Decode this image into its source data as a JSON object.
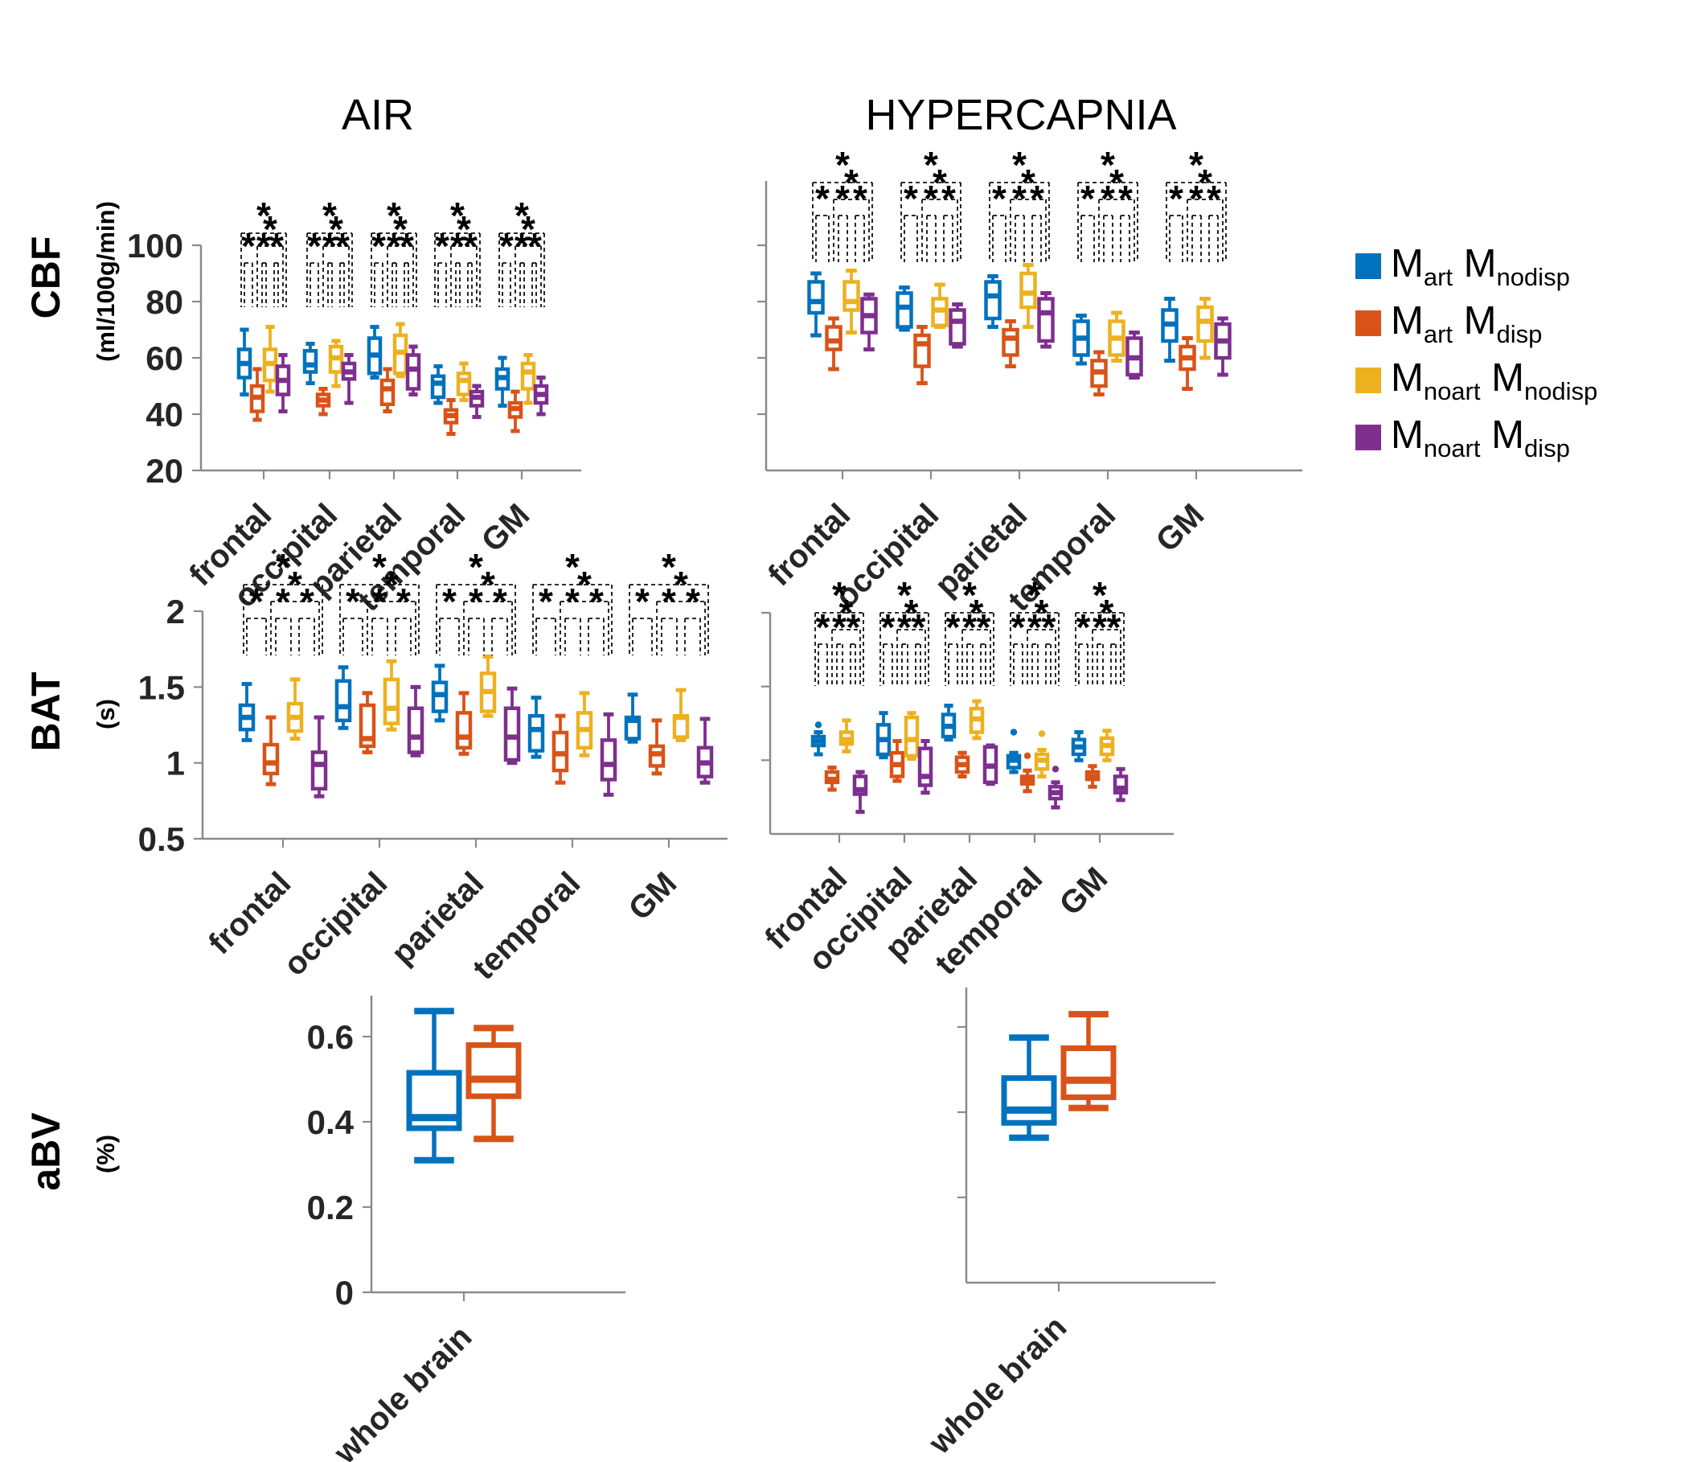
{
  "titles": {
    "air": "AIR",
    "hypercapnia": "HYPERCAPNIA"
  },
  "rows": [
    {
      "label": "CBF",
      "unit": "(ml/100g/min)"
    },
    {
      "label": "BAT",
      "unit": "(s)"
    },
    {
      "label": "aBV",
      "unit": "(%)"
    }
  ],
  "legend": {
    "items": [
      {
        "color": "#0072BD",
        "parts": [
          "M",
          "art",
          " M",
          "nodisp"
        ],
        "name": "Mart Mnodisp"
      },
      {
        "color": "#D95319",
        "parts": [
          "M",
          "art",
          " M",
          "disp"
        ],
        "name": "Mart Mdisp"
      },
      {
        "color": "#EDB120",
        "parts": [
          "M",
          "noart",
          " M",
          "nodisp"
        ],
        "name": "Mnoart Mnodisp"
      },
      {
        "color": "#7E2F8E",
        "parts": [
          "M",
          "noart",
          " M",
          "disp"
        ],
        "name": "Mnoart Mdisp"
      }
    ]
  },
  "chart_data": [
    {
      "id": "cbf-air",
      "type": "box",
      "measure": "CBF",
      "condition": "AIR",
      "ylabel": "(ml/100g/min)",
      "ylim": [
        20,
        100
      ],
      "yticks": [
        {
          "v": 20,
          "t": "20"
        },
        {
          "v": 40,
          "t": "40"
        },
        {
          "v": 60,
          "t": "60"
        },
        {
          "v": 80,
          "t": "80"
        },
        {
          "v": 100,
          "t": "100"
        }
      ],
      "categories": [
        "frontal",
        "occipital",
        "parietal",
        "temporal",
        "GM"
      ],
      "series": [
        {
          "name": "Mart Mnodisp",
          "color": "#0072BD",
          "boxes": [
            [
              47,
              53,
              58,
              63,
              70
            ],
            [
              51,
              55,
              57.5,
              62.5,
              65
            ],
            [
              53,
              54.5,
              61,
              67,
              71
            ],
            [
              44,
              46,
              51,
              53.5,
              57
            ],
            [
              43,
              49,
              53,
              56,
              60
            ]
          ]
        },
        {
          "name": "Mart Mdisp",
          "color": "#D95319",
          "boxes": [
            [
              38,
              41,
              46,
              50,
              56
            ],
            [
              40,
              43,
              45,
              47,
              49
            ],
            [
              41,
              43.5,
              49,
              52,
              56
            ],
            [
              33,
              37,
              39.5,
              41.5,
              45
            ],
            [
              34,
              39,
              42,
              44,
              48
            ]
          ]
        },
        {
          "name": "Mnoart Mnodisp",
          "color": "#EDB120",
          "boxes": [
            [
              48,
              52,
              58,
              63,
              71
            ],
            [
              50,
              55,
              60,
              64,
              66
            ],
            [
              53.5,
              54.5,
              62,
              68,
              72
            ],
            [
              45,
              47,
              52,
              54.5,
              58
            ],
            [
              44,
              49,
              55,
              58,
              61
            ]
          ]
        },
        {
          "name": "Mnoart Mdisp",
          "color": "#7E2F8E",
          "boxes": [
            [
              41,
              47,
              52,
              57,
              61
            ],
            [
              44,
              52.5,
              55,
              58,
              61
            ],
            [
              47,
              49,
              56,
              61,
              64
            ],
            [
              39,
              43,
              46,
              48,
              50
            ],
            [
              40,
              44,
              47,
              50,
              53
            ]
          ]
        }
      ],
      "sig": {
        "symbol": "*",
        "comparisons": [
          [
            1,
            4
          ],
          [
            2,
            4
          ],
          [
            1,
            2
          ],
          [
            2,
            3
          ],
          [
            3,
            4
          ]
        ]
      }
    },
    {
      "id": "cbf-hyp",
      "type": "box",
      "measure": "CBF",
      "condition": "HYPERCAPNIA",
      "ylim": [
        20,
        100
      ],
      "yticks": [
        {
          "v": 40,
          "t": ""
        },
        {
          "v": 60,
          "t": ""
        },
        {
          "v": 80,
          "t": ""
        },
        {
          "v": 100,
          "t": ""
        }
      ],
      "categories": [
        "frontal",
        "occipital",
        "parietal",
        "temporal",
        "GM"
      ],
      "series": [
        {
          "name": "Mart Mnodisp",
          "color": "#0072BD",
          "boxes": [
            [
              68,
              76,
              80,
              87,
              90
            ],
            [
              70,
              71,
              78,
              83,
              85
            ],
            [
              71,
              74,
              82,
              87,
              89
            ],
            [
              58,
              61,
              67,
              73,
              75
            ],
            [
              59,
              66,
              72,
              77,
              81
            ]
          ]
        },
        {
          "name": "Mart Mdisp",
          "color": "#D95319",
          "boxes": [
            [
              56,
              63,
              66,
              71,
              74
            ],
            [
              51,
              57,
              65,
              68,
              71
            ],
            [
              57,
              61,
              67,
              70,
              73
            ],
            [
              47,
              50,
              55,
              59,
              62
            ],
            [
              49,
              56,
              60,
              64,
              67
            ]
          ]
        },
        {
          "name": "Mnoart Mnodisp",
          "color": "#EDB120",
          "boxes": [
            [
              69,
              77,
              80,
              87,
              91
            ],
            [
              71,
              71.5,
              77,
              81,
              86
            ],
            [
              71,
              78,
              83,
              90,
              93
            ],
            [
              59,
              61,
              67,
              73,
              76
            ],
            [
              60,
              66,
              73,
              78,
              81
            ]
          ]
        },
        {
          "name": "Mnoart Mdisp",
          "color": "#7E2F8E",
          "boxes": [
            [
              63,
              69,
              75,
              81,
              82.5
            ],
            [
              64,
              65,
              73,
              77,
              79
            ],
            [
              64,
              66,
              76,
              81,
              83
            ],
            [
              53,
              54,
              60,
              67,
              69
            ],
            [
              54,
              60,
              66,
              72,
              74
            ]
          ]
        }
      ],
      "sig": {
        "symbol": "*",
        "comparisons": [
          [
            1,
            4
          ],
          [
            2,
            4
          ],
          [
            1,
            2
          ],
          [
            2,
            3
          ],
          [
            3,
            4
          ]
        ]
      }
    },
    {
      "id": "bat-air",
      "type": "box",
      "measure": "BAT",
      "condition": "AIR",
      "ylabel": "(s)",
      "ylim": [
        0.5,
        2
      ],
      "yticks": [
        {
          "v": 0.5,
          "t": "0.5"
        },
        {
          "v": 1,
          "t": "1"
        },
        {
          "v": 1.5,
          "t": "1.5"
        },
        {
          "v": 2,
          "t": "2"
        }
      ],
      "categories": [
        "frontal",
        "occipital",
        "parietal",
        "temporal",
        "GM"
      ],
      "series": [
        {
          "name": "Mart Mnodisp",
          "color": "#0072BD",
          "boxes": [
            [
              1.15,
              1.22,
              1.3,
              1.38,
              1.52
            ],
            [
              1.23,
              1.28,
              1.37,
              1.54,
              1.63
            ],
            [
              1.28,
              1.34,
              1.45,
              1.53,
              1.64
            ],
            [
              1.04,
              1.08,
              1.22,
              1.31,
              1.43
            ],
            [
              1.14,
              1.16,
              1.28,
              1.3,
              1.45
            ]
          ]
        },
        {
          "name": "Mart Mdisp",
          "color": "#D95319",
          "boxes": [
            [
              0.86,
              0.93,
              1.0,
              1.12,
              1.3
            ],
            [
              1.07,
              1.11,
              1.16,
              1.38,
              1.46
            ],
            [
              1.06,
              1.1,
              1.17,
              1.33,
              1.46
            ],
            [
              0.87,
              0.95,
              1.06,
              1.2,
              1.31
            ],
            [
              0.93,
              0.98,
              1.06,
              1.11,
              1.28
            ]
          ]
        },
        {
          "name": "Mnoart Mnodisp",
          "color": "#EDB120",
          "boxes": [
            [
              1.16,
              1.21,
              1.3,
              1.39,
              1.55
            ],
            [
              1.22,
              1.26,
              1.36,
              1.55,
              1.67
            ],
            [
              1.31,
              1.34,
              1.47,
              1.59,
              1.7
            ],
            [
              1.05,
              1.1,
              1.22,
              1.33,
              1.46
            ],
            [
              1.15,
              1.17,
              1.3,
              1.31,
              1.48
            ]
          ]
        },
        {
          "name": "Mnoart Mdisp",
          "color": "#7E2F8E",
          "boxes": [
            [
              0.78,
              0.83,
              0.99,
              1.07,
              1.3
            ],
            [
              1.05,
              1.07,
              1.17,
              1.36,
              1.5
            ],
            [
              1.0,
              1.02,
              1.17,
              1.36,
              1.49
            ],
            [
              0.79,
              0.89,
              0.99,
              1.15,
              1.32
            ],
            [
              0.87,
              0.91,
              1.0,
              1.1,
              1.29
            ]
          ]
        }
      ],
      "sig": {
        "symbol": "*",
        "comparisons": [
          [
            1,
            4
          ],
          [
            2,
            4
          ],
          [
            1,
            2
          ],
          [
            2,
            3
          ],
          [
            3,
            4
          ]
        ]
      }
    },
    {
      "id": "bat-hyp",
      "type": "box",
      "measure": "BAT",
      "condition": "HYPERCAPNIA",
      "ylim": [
        0.5,
        2
      ],
      "yticks": [
        {
          "v": 1,
          "t": ""
        },
        {
          "v": 1.5,
          "t": ""
        },
        {
          "v": 2,
          "t": ""
        }
      ],
      "categories": [
        "frontal",
        "occipital",
        "parietal",
        "temporal",
        "GM"
      ],
      "series": [
        {
          "name": "Mart Mnodisp",
          "color": "#0072BD",
          "boxes": [
            [
              1.04,
              1.1,
              1.13,
              1.16,
              1.19,
              [
                1.24
              ]
            ],
            [
              1.02,
              1.04,
              1.14,
              1.24,
              1.32
            ],
            [
              1.14,
              1.16,
              1.23,
              1.31,
              1.37
            ],
            [
              0.92,
              0.95,
              1.0,
              1.03,
              1.05,
              [
                1.19
              ]
            ],
            [
              1.0,
              1.04,
              1.09,
              1.14,
              1.19
            ]
          ]
        },
        {
          "name": "Mart Mdisp",
          "color": "#D95319",
          "boxes": [
            [
              0.8,
              0.85,
              0.87,
              0.92,
              0.95
            ],
            [
              0.86,
              0.89,
              0.97,
              1.05,
              1.13
            ],
            [
              0.89,
              0.92,
              0.97,
              1.02,
              1.05
            ],
            [
              0.79,
              0.84,
              0.87,
              0.89,
              0.93,
              [
                1.03
              ]
            ],
            [
              0.82,
              0.87,
              0.89,
              0.92,
              0.96
            ]
          ]
        },
        {
          "name": "Mnoart Mnodisp",
          "color": "#EDB120",
          "boxes": [
            [
              1.06,
              1.11,
              1.14,
              1.19,
              1.27
            ],
            [
              1.01,
              1.03,
              1.14,
              1.29,
              1.32
            ],
            [
              1.15,
              1.19,
              1.28,
              1.35,
              1.4
            ],
            [
              0.89,
              0.94,
              1.0,
              1.04,
              1.07,
              [
                1.18
              ]
            ],
            [
              1.0,
              1.04,
              1.1,
              1.15,
              1.2
            ]
          ]
        },
        {
          "name": "Mnoart Mdisp",
          "color": "#7E2F8E",
          "boxes": [
            [
              0.65,
              0.77,
              0.8,
              0.89,
              0.92
            ],
            [
              0.78,
              0.83,
              0.89,
              1.08,
              1.13
            ],
            [
              0.84,
              0.85,
              0.96,
              1.09,
              1.1
            ],
            [
              0.68,
              0.74,
              0.78,
              0.82,
              0.85,
              [
                0.94
              ]
            ],
            [
              0.73,
              0.78,
              0.81,
              0.89,
              0.94
            ]
          ]
        }
      ],
      "sig": {
        "symbol": "*",
        "comparisons": [
          [
            1,
            4
          ],
          [
            2,
            4
          ],
          [
            1,
            2
          ],
          [
            2,
            3
          ],
          [
            3,
            4
          ]
        ]
      }
    },
    {
      "id": "abv-air",
      "type": "box",
      "measure": "aBV",
      "condition": "AIR",
      "ylabel": "(%)",
      "ylim": [
        0,
        0.7
      ],
      "yticks": [
        {
          "v": 0,
          "t": "0"
        },
        {
          "v": 0.2,
          "t": "0.2"
        },
        {
          "v": 0.4,
          "t": "0.4"
        },
        {
          "v": 0.6,
          "t": "0.6"
        }
      ],
      "categories": [
        "whole brain"
      ],
      "series": [
        {
          "name": "Mart Mnodisp",
          "color": "#0072BD",
          "boxes": [
            [
              0.31,
              0.385,
              0.41,
              0.515,
              0.66
            ]
          ]
        },
        {
          "name": "Mart Mdisp",
          "color": "#D95319",
          "boxes": [
            [
              0.36,
              0.46,
              0.5,
              0.58,
              0.62
            ]
          ]
        }
      ],
      "sig": null
    },
    {
      "id": "abv-hyp",
      "type": "box",
      "measure": "aBV",
      "condition": "HYPERCAPNIA",
      "ylim": [
        0,
        0.7
      ],
      "yticks": [
        {
          "v": 0.2,
          "t": ""
        },
        {
          "v": 0.4,
          "t": ""
        },
        {
          "v": 0.6,
          "t": ""
        }
      ],
      "categories": [
        "whole brain"
      ],
      "series": [
        {
          "name": "Mart Mnodisp",
          "color": "#0072BD",
          "boxes": [
            [
              0.34,
              0.375,
              0.405,
              0.48,
              0.575
            ]
          ]
        },
        {
          "name": "Mart Mdisp",
          "color": "#D95319",
          "boxes": [
            [
              0.41,
              0.435,
              0.475,
              0.55,
              0.63
            ]
          ]
        }
      ],
      "sig": null
    }
  ]
}
